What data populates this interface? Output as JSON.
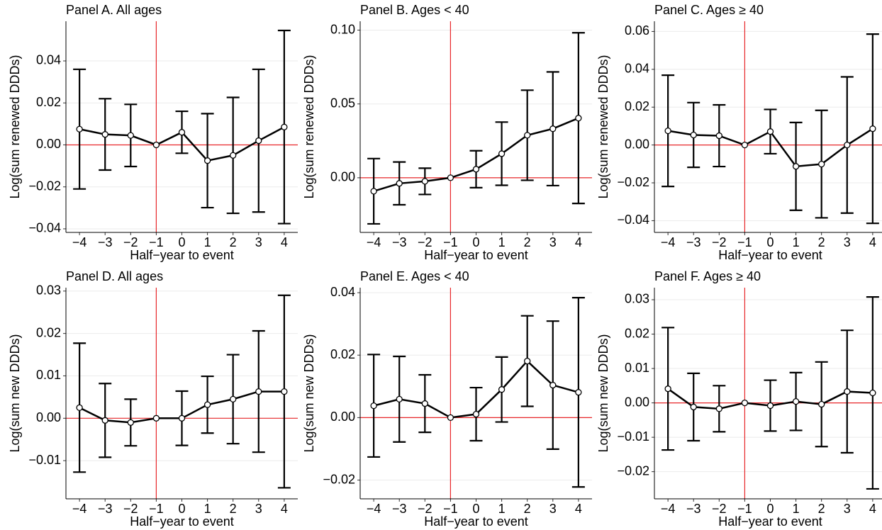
{
  "chart_data": [
    {
      "type": "errorbar",
      "title": "Panel A. All ages",
      "x_label": "Half−year to event",
      "y_label": "Log(sum renewed DDDs)",
      "x": [
        -4,
        -3,
        -2,
        -1,
        0,
        1,
        2,
        3,
        4
      ],
      "values": [
        0.0075,
        0.005,
        0.0045,
        0,
        0.006,
        -0.0075,
        -0.005,
        0.002,
        0.0085
      ],
      "errors": [
        0.0285,
        0.017,
        0.0148,
        0,
        0.01,
        0.0224,
        0.0276,
        0.034,
        0.046
      ],
      "xlim": [
        -4.53,
        4.53
      ],
      "ylim": [
        -0.0417,
        0.0589
      ],
      "xticks": [
        {
          "value": -4,
          "label": "−4"
        },
        {
          "value": -3,
          "label": "−3"
        },
        {
          "value": -2,
          "label": "−2"
        },
        {
          "value": -1,
          "label": "−1"
        },
        0,
        1,
        2,
        3,
        4
      ],
      "yticks": [
        {
          "value": -0.04,
          "label": "−0.04"
        },
        {
          "value": -0.02,
          "label": "−0.02"
        },
        {
          "value": 0,
          "label": "0.00"
        },
        {
          "value": 0.02,
          "label": "0.02"
        },
        {
          "value": 0.04,
          "label": "0.04"
        }
      ],
      "ref_x": -1,
      "ref_y": 0,
      "ref_color": "#e8272a",
      "color": "#000000",
      "grid": true
    },
    {
      "type": "errorbar",
      "title": "Panel B. Ages < 40",
      "x_label": "Half−year to event",
      "y_label": "Log(sum renewed DDDs)",
      "x": [
        -4,
        -3,
        -2,
        -1,
        0,
        1,
        2,
        3,
        4
      ],
      "values": [
        -0.0091,
        -0.0038,
        -0.0024,
        0,
        0.0058,
        0.0163,
        0.0288,
        0.0332,
        0.0404
      ],
      "errors": [
        0.0221,
        0.0145,
        0.0089,
        0,
        0.0125,
        0.0214,
        0.0305,
        0.0385,
        0.0578
      ],
      "xlim": [
        -4.53,
        4.53
      ],
      "ylim": [
        -0.037,
        0.106
      ],
      "xticks": [
        {
          "value": -4,
          "label": "−4"
        },
        {
          "value": -3,
          "label": "−3"
        },
        {
          "value": -2,
          "label": "−2"
        },
        {
          "value": -1,
          "label": "−1"
        },
        0,
        1,
        2,
        3,
        4
      ],
      "yticks": [
        {
          "value": 0,
          "label": "0.00"
        },
        {
          "value": 0.05,
          "label": "0.05"
        },
        {
          "value": 0.1,
          "label": "0.10"
        }
      ],
      "ref_x": -1,
      "ref_y": 0,
      "ref_color": "#e8272a",
      "color": "#000000",
      "grid": true
    },
    {
      "type": "errorbar",
      "title": "Panel C. Ages ≥ 40",
      "x_label": "Half−year to event",
      "y_label": "Log(sum renewed DDDs)",
      "x": [
        -4,
        -3,
        -2,
        -1,
        0,
        1,
        2,
        3,
        4
      ],
      "values": [
        0.0075,
        0.0053,
        0.0049,
        0,
        0.0071,
        -0.0113,
        -0.0101,
        0,
        0.0086
      ],
      "errors": [
        0.0294,
        0.0171,
        0.0163,
        0,
        0.0117,
        0.0232,
        0.0284,
        0.036,
        0.05
      ],
      "xlim": [
        -4.53,
        4.53
      ],
      "ylim": [
        -0.0462,
        0.0654
      ],
      "xticks": [
        {
          "value": -4,
          "label": "−4"
        },
        {
          "value": -3,
          "label": "−3"
        },
        {
          "value": -2,
          "label": "−2"
        },
        {
          "value": -1,
          "label": "−1"
        },
        0,
        1,
        2,
        3,
        4
      ],
      "yticks": [
        {
          "value": -0.04,
          "label": "−0.04"
        },
        {
          "value": -0.02,
          "label": "−0.02"
        },
        {
          "value": 0,
          "label": "0.00"
        },
        {
          "value": 0.02,
          "label": "0.02"
        },
        {
          "value": 0.04,
          "label": "0.04"
        },
        {
          "value": 0.06,
          "label": "0.06"
        }
      ],
      "ref_x": -1,
      "ref_y": 0,
      "ref_color": "#e8272a",
      "color": "#000000",
      "grid": true
    },
    {
      "type": "errorbar",
      "title": "Panel D. All ages",
      "x_label": "Half−year to event",
      "y_label": "Log(sum new DDDs)",
      "x": [
        -4,
        -3,
        -2,
        -1,
        0,
        1,
        2,
        3,
        4
      ],
      "values": [
        0.0025,
        -0.0005,
        -0.001,
        0,
        0,
        0.0032,
        0.0045,
        0.0063,
        0.0063
      ],
      "errors": [
        0.0152,
        0.0087,
        0.0055,
        0,
        0.0064,
        0.0067,
        0.0105,
        0.0143,
        0.0227
      ],
      "xlim": [
        -4.53,
        4.53
      ],
      "ylim": [
        -0.019,
        0.0308
      ],
      "xticks": [
        {
          "value": -4,
          "label": "−4"
        },
        {
          "value": -3,
          "label": "−3"
        },
        {
          "value": -2,
          "label": "−2"
        },
        {
          "value": -1,
          "label": "−1"
        },
        0,
        1,
        2,
        3,
        4
      ],
      "yticks": [
        {
          "value": -0.01,
          "label": "−0.01"
        },
        {
          "value": 0,
          "label": "0.00"
        },
        {
          "value": 0.01,
          "label": "0.01"
        },
        {
          "value": 0.02,
          "label": "0.02"
        },
        {
          "value": 0.03,
          "label": "0.03"
        }
      ],
      "ref_x": -1,
      "ref_y": 0,
      "ref_color": "#e8272a",
      "color": "#000000",
      "grid": true
    },
    {
      "type": "errorbar",
      "title": "Panel E. Ages < 40",
      "x_label": "Half−year to event",
      "y_label": "Log(sum new DDDs)",
      "x": [
        -4,
        -3,
        -2,
        -1,
        0,
        1,
        2,
        3,
        4
      ],
      "values": [
        0.0038,
        0.0059,
        0.0045,
        0,
        0.0011,
        0.009,
        0.0181,
        0.0104,
        0.0081
      ],
      "errors": [
        0.0164,
        0.0137,
        0.0092,
        0,
        0.0085,
        0.0104,
        0.0145,
        0.0205,
        0.0303
      ],
      "xlim": [
        -4.53,
        4.53
      ],
      "ylim": [
        -0.026,
        0.0416
      ],
      "xticks": [
        {
          "value": -4,
          "label": "−4"
        },
        {
          "value": -3,
          "label": "−3"
        },
        {
          "value": -2,
          "label": "−2"
        },
        {
          "value": -1,
          "label": "−1"
        },
        0,
        1,
        2,
        3,
        4
      ],
      "yticks": [
        {
          "value": -0.02,
          "label": "−0.02"
        },
        {
          "value": 0,
          "label": "0.00"
        },
        {
          "value": 0.02,
          "label": "0.02"
        },
        {
          "value": 0.04,
          "label": "0.04"
        }
      ],
      "ref_x": -1,
      "ref_y": 0,
      "ref_color": "#e8272a",
      "color": "#000000",
      "grid": true
    },
    {
      "type": "errorbar",
      "title": "Panel F. Ages ≥ 40",
      "x_label": "Half−year to event",
      "y_label": "Log(sum new DDDs)",
      "x": [
        -4,
        -3,
        -2,
        -1,
        0,
        1,
        2,
        3,
        4
      ],
      "values": [
        0.0041,
        -0.0012,
        -0.0017,
        0,
        -0.0008,
        0.0004,
        -0.0004,
        0.0033,
        0.0029
      ],
      "errors": [
        0.0178,
        0.0098,
        0.0067,
        0,
        0.0074,
        0.0084,
        0.0123,
        0.0178,
        0.0279
      ],
      "xlim": [
        -4.53,
        4.53
      ],
      "ylim": [
        -0.0279,
        0.0335
      ],
      "xticks": [
        {
          "value": -4,
          "label": "−4"
        },
        {
          "value": -3,
          "label": "−3"
        },
        {
          "value": -2,
          "label": "−2"
        },
        {
          "value": -1,
          "label": "−1"
        },
        0,
        1,
        2,
        3,
        4
      ],
      "yticks": [
        {
          "value": -0.02,
          "label": "−0.02"
        },
        {
          "value": -0.01,
          "label": "−0.01"
        },
        {
          "value": 0,
          "label": "0.00"
        },
        {
          "value": 0.01,
          "label": "0.01"
        },
        {
          "value": 0.02,
          "label": "0.02"
        },
        {
          "value": 0.03,
          "label": "0.03"
        }
      ],
      "ref_x": -1,
      "ref_y": 0,
      "ref_color": "#e8272a",
      "color": "#000000",
      "grid": true
    }
  ]
}
